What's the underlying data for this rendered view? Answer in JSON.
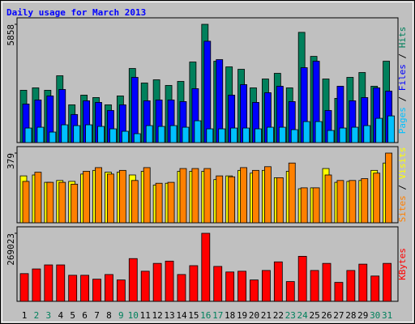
{
  "chart_data": [
    {
      "type": "bar",
      "title": "Daily usage for March 2013",
      "ylim": [
        0,
        5858
      ],
      "yticks": [
        5858
      ],
      "legend_separator": " / ",
      "series": [
        {
          "name": "Hits",
          "color": "#00805c",
          "values": [
            2590,
            2710,
            2590,
            3310,
            1870,
            2350,
            2230,
            1870,
            2310,
            3670,
            2950,
            3110,
            2830,
            3030,
            3990,
            5858,
            4030,
            3750,
            3630,
            2710,
            3150,
            3430,
            2710,
            5460,
            4270,
            3150,
            2190,
            3230,
            3470,
            2790,
            4030
          ]
        },
        {
          "name": "Files",
          "color": "#0000ff",
          "values": [
            1910,
            2110,
            2310,
            2630,
            1390,
            2070,
            1990,
            1590,
            1870,
            3230,
            2070,
            2110,
            2110,
            2030,
            2670,
            5020,
            4110,
            2350,
            2870,
            1990,
            2470,
            2790,
            2030,
            3710,
            4030,
            1590,
            2790,
            2070,
            2230,
            2710,
            2550
          ]
        },
        {
          "name": "Pages",
          "color": "#00c0ff",
          "values": [
            720,
            760,
            520,
            880,
            840,
            880,
            800,
            680,
            560,
            440,
            840,
            800,
            840,
            760,
            1080,
            680,
            680,
            720,
            720,
            680,
            760,
            760,
            640,
            1040,
            1040,
            600,
            720,
            760,
            840,
            1200,
            1320
          ]
        }
      ]
    },
    {
      "type": "bar",
      "ylim": [
        0,
        379
      ],
      "yticks": [
        379
      ],
      "legend_separator": " / ",
      "series": [
        {
          "name": "Visits",
          "color": "#ffff00",
          "values": [
            255,
            260,
            220,
            230,
            225,
            265,
            285,
            275,
            275,
            260,
            280,
            205,
            215,
            280,
            280,
            280,
            235,
            255,
            285,
            270,
            285,
            245,
            280,
            185,
            190,
            295,
            220,
            225,
            230,
            285,
            325
          ]
        },
        {
          "name": "Sites",
          "color": "#ff8000",
          "values": [
            225,
            275,
            220,
            220,
            210,
            280,
            300,
            265,
            285,
            230,
            300,
            215,
            220,
            295,
            295,
            295,
            255,
            250,
            300,
            285,
            305,
            245,
            325,
            190,
            190,
            260,
            230,
            230,
            240,
            270,
            379
          ]
        }
      ]
    },
    {
      "type": "bar",
      "ylim": [
        0,
        269023
      ],
      "yticks": [
        269023
      ],
      "categories": [
        "1",
        "2",
        "3",
        "4",
        "5",
        "6",
        "7",
        "8",
        "9",
        "10",
        "11",
        "12",
        "13",
        "14",
        "15",
        "16",
        "17",
        "18",
        "19",
        "20",
        "21",
        "22",
        "23",
        "24",
        "25",
        "26",
        "27",
        "28",
        "29",
        "30",
        "31"
      ],
      "category_colors": [
        "#000000",
        "#00805c",
        "#00805c",
        "#000000",
        "#000000",
        "#000000",
        "#000000",
        "#000000",
        "#00805c",
        "#00805c",
        "#000000",
        "#000000",
        "#000000",
        "#000000",
        "#000000",
        "#00805c",
        "#00805c",
        "#000000",
        "#000000",
        "#000000",
        "#000000",
        "#000000",
        "#00805c",
        "#00805c",
        "#000000",
        "#000000",
        "#000000",
        "#000000",
        "#000000",
        "#00805c",
        "#00805c"
      ],
      "series": [
        {
          "name": "KBytes",
          "color": "#ff0000",
          "values": [
            109500,
            128000,
            144000,
            144000,
            103000,
            103000,
            87600,
            106000,
            84500,
            169000,
            119000,
            150000,
            159000,
            106000,
            141000,
            269023,
            138000,
            116000,
            119000,
            84500,
            122000,
            156000,
            78200,
            178000,
            122000,
            150000,
            75000,
            122000,
            147000,
            100000,
            150000
          ]
        }
      ]
    }
  ]
}
